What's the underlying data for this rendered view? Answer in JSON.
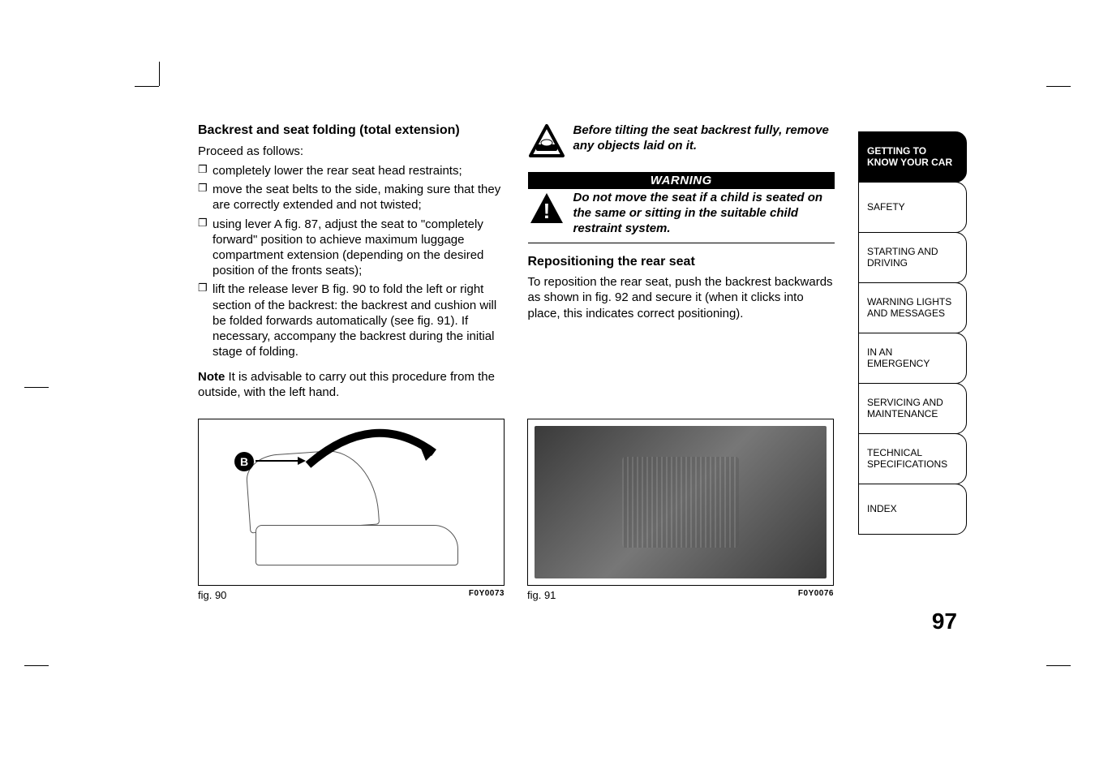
{
  "page_number": "97",
  "left": {
    "heading": "Backrest and seat folding (total extension)",
    "lead": "Proceed as follows:",
    "bullets": [
      "completely lower the rear seat head restraints;",
      "move the seat belts to the side, making sure that they are correctly extended and not twisted;",
      "using lever A fig. 87, adjust the seat to \"completely forward\" position to achieve maximum luggage compartment extension (depending on the desired position of the fronts seats);",
      "lift the release lever B fig. 90 to fold the left or right section of the backrest: the backrest and cushion will be folded forwards automatically (see fig. 91). If necessary, accompany the backrest during the initial stage of folding."
    ],
    "note_label": "Note",
    "note_text": " It is advisable to carry out this procedure from the outside, with the left hand."
  },
  "right": {
    "info_text": "Before tilting the seat backrest fully, remove any objects laid on it.",
    "warning_label": "WARNING",
    "warning_text": "Do not move the seat if a child is seated on the same or sitting in the suitable child restraint system.",
    "repo_heading": "Repositioning the rear seat",
    "repo_text": "To reposition the rear seat, push the backrest backwards as shown in fig. 92 and secure it (when it clicks into place, this indicates correct positioning)."
  },
  "figures": {
    "fig90": {
      "caption": "fig. 90",
      "code": "F0Y0073",
      "label_b": "B"
    },
    "fig91": {
      "caption": "fig. 91",
      "code": "F0Y0076"
    }
  },
  "sidebar": [
    {
      "label": "GETTING TO\nKNOW YOUR CAR",
      "active": true
    },
    {
      "label": "SAFETY",
      "active": false
    },
    {
      "label": "STARTING AND\nDRIVING",
      "active": false
    },
    {
      "label": "WARNING LIGHTS\nAND MESSAGES",
      "active": false
    },
    {
      "label": "IN AN EMERGENCY",
      "active": false
    },
    {
      "label": "SERVICING AND\nMAINTENANCE",
      "active": false
    },
    {
      "label": "TECHNICAL\nSPECIFICATIONS",
      "active": false
    },
    {
      "label": "INDEX",
      "active": false
    }
  ],
  "colors": {
    "black": "#000000",
    "white": "#ffffff"
  }
}
